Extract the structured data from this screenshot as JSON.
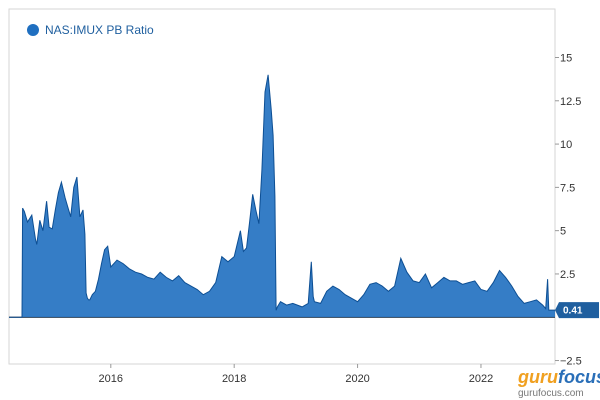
{
  "chart_data": {
    "type": "area",
    "title": "",
    "xlabel": "",
    "ylabel": "",
    "x_ticks": [
      "2016",
      "2018",
      "2020",
      "2022"
    ],
    "y_ticks": [
      "15",
      "12.5",
      "10",
      "7.5",
      "5",
      "2.5",
      "0",
      "−2.5"
    ],
    "xlim": [
      2014.35,
      2023.2
    ],
    "ylim": [
      -2.7,
      17.8
    ],
    "grid": false,
    "legend_position": "top-left",
    "series": [
      {
        "name": "NAS:IMUX PB Ratio",
        "color": "#1f6fc0",
        "last_value_label": "0.41",
        "x": [
          2014.35,
          2014.56,
          2014.57,
          2014.6,
          2014.65,
          2014.72,
          2014.78,
          2014.8,
          2014.85,
          2014.9,
          2014.96,
          2015.0,
          2015.05,
          2015.1,
          2015.15,
          2015.2,
          2015.26,
          2015.3,
          2015.35,
          2015.4,
          2015.45,
          2015.5,
          2015.55,
          2015.58,
          2015.6,
          2015.62,
          2015.64,
          2015.66,
          2015.7,
          2015.75,
          2015.8,
          2015.85,
          2015.9,
          2015.95,
          2016.0,
          2016.1,
          2016.2,
          2016.3,
          2016.4,
          2016.5,
          2016.6,
          2016.7,
          2016.8,
          2016.9,
          2017.0,
          2017.1,
          2017.2,
          2017.3,
          2017.4,
          2017.5,
          2017.6,
          2017.7,
          2017.8,
          2017.9,
          2018.0,
          2018.1,
          2018.15,
          2018.2,
          2018.25,
          2018.3,
          2018.35,
          2018.4,
          2018.45,
          2018.5,
          2018.55,
          2018.6,
          2018.63,
          2018.66,
          2018.68,
          2018.7,
          2018.75,
          2018.85,
          2018.95,
          2019.1,
          2019.2,
          2019.25,
          2019.28,
          2019.3,
          2019.4,
          2019.5,
          2019.6,
          2019.7,
          2019.8,
          2019.9,
          2020.0,
          2020.1,
          2020.2,
          2020.3,
          2020.4,
          2020.5,
          2020.6,
          2020.7,
          2020.8,
          2020.9,
          2021.0,
          2021.1,
          2021.2,
          2021.3,
          2021.4,
          2021.5,
          2021.6,
          2021.7,
          2021.8,
          2021.9,
          2022.0,
          2022.1,
          2022.2,
          2022.3,
          2022.4,
          2022.5,
          2022.6,
          2022.7,
          2022.8,
          2022.9,
          2023.0,
          2023.05,
          2023.08,
          2023.1,
          2023.2
        ],
        "values": [
          0,
          0,
          6.3,
          6.1,
          5.5,
          5.9,
          4.5,
          4.2,
          5.6,
          5.0,
          6.7,
          5.2,
          5.1,
          6.2,
          7.2,
          7.8,
          6.9,
          6.4,
          5.8,
          7.5,
          8.1,
          5.8,
          6.2,
          4.8,
          1.4,
          1.1,
          1.0,
          1.0,
          1.3,
          1.5,
          2.2,
          3.1,
          3.9,
          4.1,
          2.9,
          3.3,
          3.1,
          2.8,
          2.6,
          2.5,
          2.3,
          2.2,
          2.6,
          2.3,
          2.1,
          2.4,
          2.0,
          1.8,
          1.6,
          1.3,
          1.5,
          2.0,
          3.5,
          3.2,
          3.5,
          5.0,
          3.8,
          4.0,
          5.5,
          7.1,
          6.2,
          5.4,
          8.5,
          13.0,
          14.0,
          12.0,
          10.5,
          7.0,
          0.4,
          0.6,
          0.9,
          0.7,
          0.8,
          0.6,
          0.8,
          3.2,
          1.2,
          0.9,
          0.8,
          1.5,
          1.8,
          1.6,
          1.3,
          1.1,
          0.9,
          1.3,
          1.9,
          2.0,
          1.8,
          1.5,
          1.8,
          3.4,
          2.6,
          2.1,
          2.0,
          2.5,
          1.7,
          2.0,
          2.3,
          2.1,
          2.1,
          1.9,
          2.0,
          2.1,
          1.6,
          1.5,
          2.0,
          2.7,
          2.3,
          1.8,
          1.2,
          0.8,
          0.9,
          1.0,
          0.7,
          0.5,
          2.2,
          0.41,
          0.41
        ]
      }
    ]
  },
  "legend": {
    "marker_icon": "circle-marker-icon"
  },
  "watermark": {
    "brand_part1": "guru",
    "brand_part2": "focus",
    "url": "gurufocus.com",
    "color1": "#f0a020",
    "color2": "#2a6fb8"
  }
}
